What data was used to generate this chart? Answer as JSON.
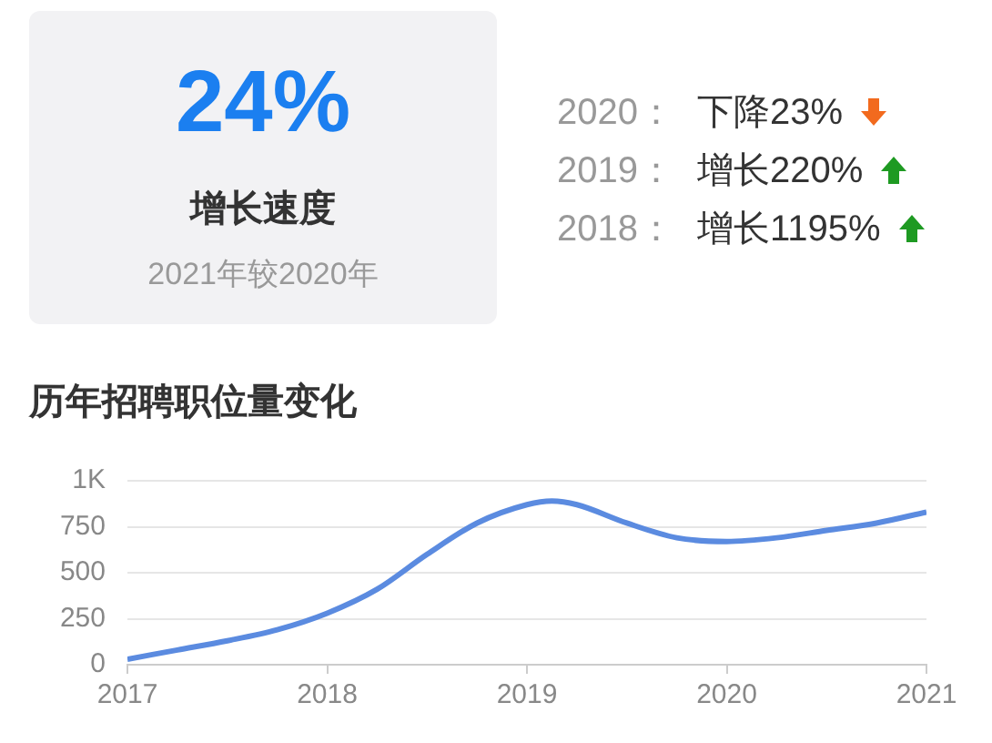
{
  "chart_data": {
    "type": "line",
    "title": "历年招聘职位量变化",
    "annotations": [
      "24%",
      "增长速度",
      "2021年较2020年",
      "2020：",
      "下降23%",
      "2019：",
      "增长220%",
      "2018：",
      "增长1195%"
    ],
    "x": [
      2017,
      2017.25,
      2017.5,
      2017.75,
      2018,
      2018.25,
      2018.5,
      2018.75,
      2019,
      2019.125,
      2019.25,
      2019.5,
      2019.75,
      2020,
      2020.25,
      2020.5,
      2020.75,
      2021
    ],
    "values": [
      30,
      80,
      130,
      190,
      280,
      410,
      600,
      770,
      870,
      890,
      870,
      770,
      690,
      670,
      690,
      730,
      770,
      830
    ],
    "color": "#5b8be0",
    "xlim": [
      2017,
      2021
    ],
    "xticks": [
      2017,
      2018,
      2019,
      2020,
      2021
    ],
    "ylim": [
      0,
      1000
    ],
    "yticks": [
      0,
      250,
      500,
      750,
      {
        "value": 1000,
        "label": "1K"
      }
    ],
    "grid": "y",
    "marker": "none"
  }
}
